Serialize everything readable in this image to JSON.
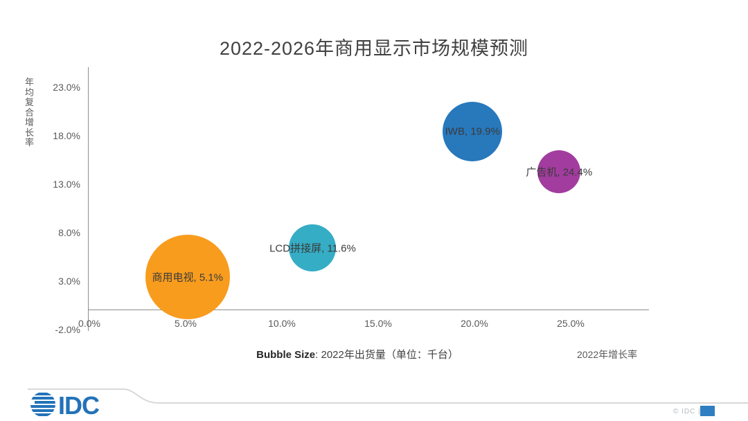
{
  "title": "2022-2026年商用显示市场规模预测",
  "chart_data": {
    "type": "scatter",
    "subtype": "bubble",
    "title": "2022-2026年商用显示市场规模预测",
    "xlabel": "2022年增长率",
    "ylabel": "年均复合增长率",
    "x_ticks": [
      {
        "v": 0,
        "label": "0.0%"
      },
      {
        "v": 5,
        "label": "5.0%"
      },
      {
        "v": 10,
        "label": "10.0%"
      },
      {
        "v": 15,
        "label": "15.0%"
      },
      {
        "v": 20,
        "label": "20.0%"
      },
      {
        "v": 25,
        "label": "25.0%"
      }
    ],
    "y_ticks": [
      {
        "v": -2,
        "label": "-2.0%"
      },
      {
        "v": 3,
        "label": "3.0%"
      },
      {
        "v": 8,
        "label": "8.0%"
      },
      {
        "v": 13,
        "label": "13.0%"
      },
      {
        "v": 18,
        "label": "18.0%"
      },
      {
        "v": 23,
        "label": "23.0%"
      }
    ],
    "xlim": [
      0,
      29
    ],
    "ylim": [
      -2,
      25
    ],
    "grid": false,
    "legend_position": "none",
    "series": [
      {
        "name": "商用电视",
        "label": "商用电视, 5.1%",
        "x_growth_2022_pct": 5.1,
        "y_cagr_pct_est": 3.4,
        "bubble_radius_px": 61,
        "color": "#F89C1E"
      },
      {
        "name": "LCD拼接屏",
        "label": "LCD拼接屏, 11.6%",
        "x_growth_2022_pct": 11.6,
        "y_cagr_pct_est": 6.4,
        "bubble_radius_px": 34,
        "color": "#35ADC5"
      },
      {
        "name": "IWB",
        "label": "IWB, 19.9%",
        "x_growth_2022_pct": 19.9,
        "y_cagr_pct_est": 18.4,
        "bubble_radius_px": 43,
        "color": "#2878BC"
      },
      {
        "name": "广告机",
        "label": "广告机, 24.4%",
        "x_growth_2022_pct": 24.4,
        "y_cagr_pct_est": 14.3,
        "bubble_radius_px": 31,
        "color": "#A23C9E"
      }
    ],
    "note_bold": "Bubble Size",
    "note_rest": ": 2022年出货量（单位：千台）"
  },
  "footer": {
    "logo_text": "IDC",
    "copyright": "© IDC |",
    "logo_color": "#2272B9",
    "accent_color": "#2E7EC1",
    "swoosh_color": "#d8d8d8"
  }
}
